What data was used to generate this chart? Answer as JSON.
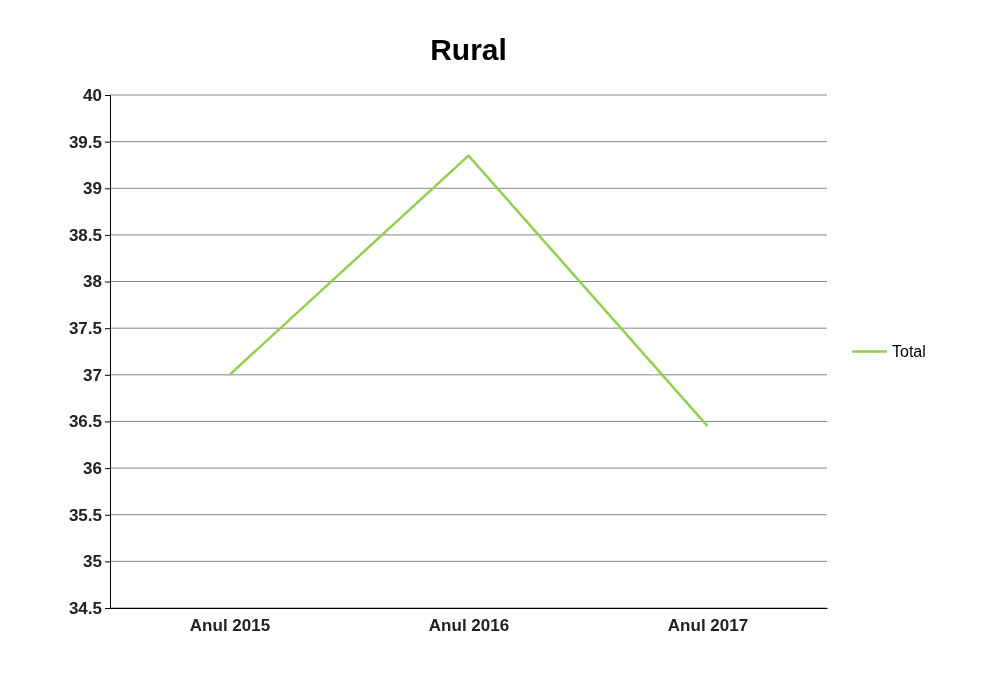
{
  "chart_data": {
    "type": "line",
    "title": "Rural",
    "categories": [
      "Anul 2015",
      "Anul 2016",
      "Anul 2017"
    ],
    "series": [
      {
        "name": "Total",
        "color": "#92d050",
        "values": [
          37.0,
          39.35,
          36.45
        ]
      }
    ],
    "ylim": [
      34.5,
      40
    ],
    "yticks": [
      {
        "value": 34.5,
        "label": "34.5"
      },
      35,
      {
        "value": 35.5,
        "label": "35.5"
      },
      36,
      {
        "value": 36.5,
        "label": "36.5"
      },
      37,
      {
        "value": 37.5,
        "label": "37.5"
      },
      38,
      {
        "value": 38.5,
        "label": "38.5"
      },
      39,
      {
        "value": 39.5,
        "label": "39.5"
      },
      40
    ],
    "grid": "y",
    "legend": "right"
  }
}
